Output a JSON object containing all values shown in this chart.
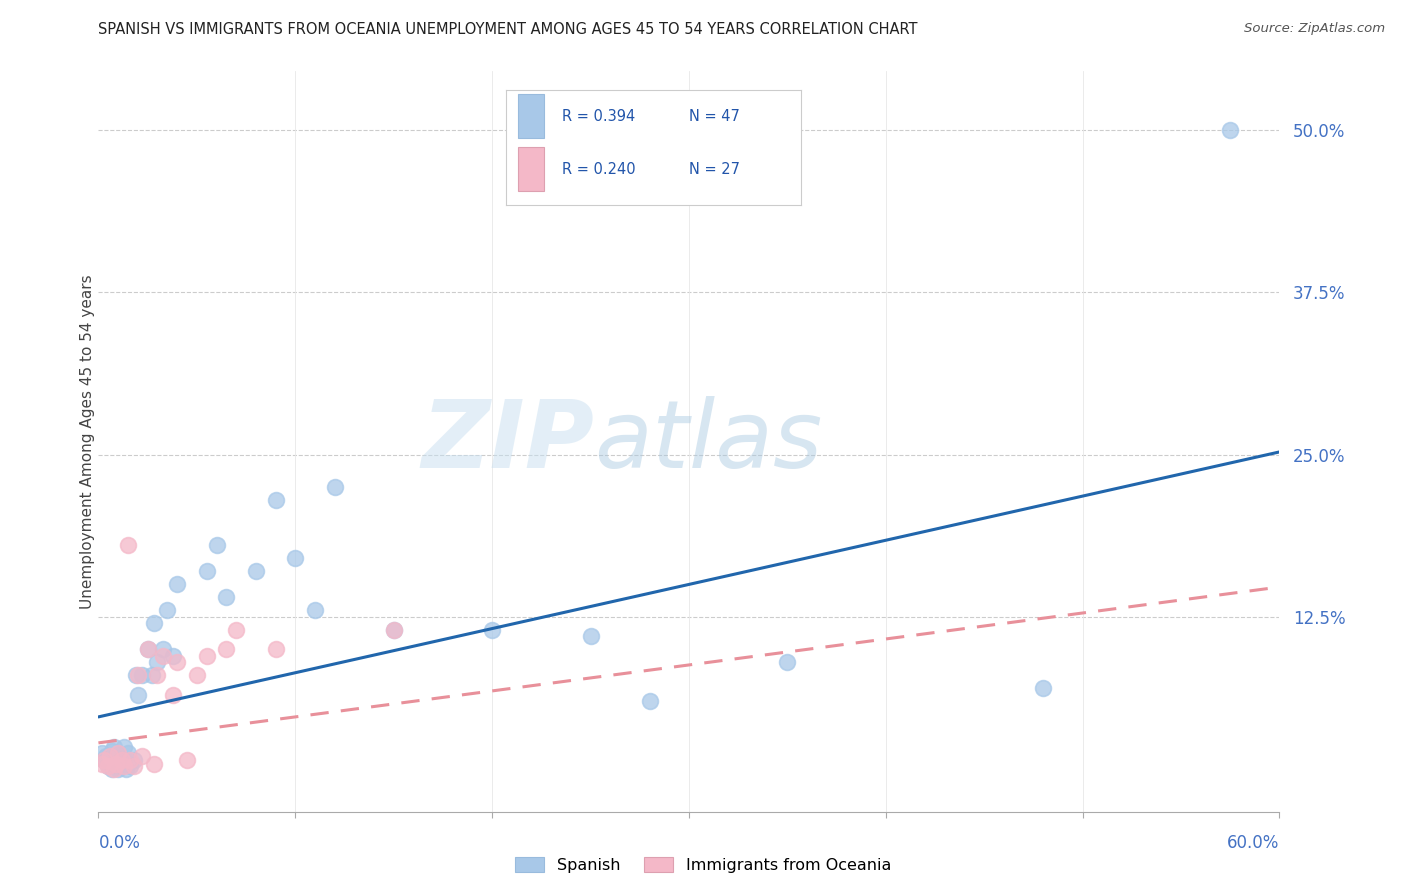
{
  "title": "SPANISH VS IMMIGRANTS FROM OCEANIA UNEMPLOYMENT AMONG AGES 45 TO 54 YEARS CORRELATION CHART",
  "source": "Source: ZipAtlas.com",
  "ylabel": "Unemployment Among Ages 45 to 54 years",
  "xmin": 0.0,
  "xmax": 0.6,
  "ymin": -0.025,
  "ymax": 0.545,
  "watermark_zip": "ZIP",
  "watermark_atlas": "atlas",
  "series1_label": "Spanish",
  "series2_label": "Immigrants from Oceania",
  "R1": 0.394,
  "N1": 47,
  "R2": 0.24,
  "N2": 27,
  "color1": "#a8c8e8",
  "color2": "#f4b8c8",
  "trend1_color": "#2166ac",
  "trend2_color": "#e8909a",
  "trend1_start_y": 0.048,
  "trend1_end_y": 0.252,
  "trend2_start_y": 0.028,
  "trend2_end_y": 0.148,
  "spanish_x": [
    0.002,
    0.003,
    0.004,
    0.005,
    0.006,
    0.007,
    0.007,
    0.008,
    0.008,
    0.009,
    0.01,
    0.01,
    0.011,
    0.012,
    0.013,
    0.013,
    0.014,
    0.015,
    0.015,
    0.016,
    0.018,
    0.019,
    0.02,
    0.022,
    0.025,
    0.027,
    0.028,
    0.03,
    0.033,
    0.035,
    0.038,
    0.04,
    0.055,
    0.06,
    0.065,
    0.08,
    0.09,
    0.1,
    0.11,
    0.12,
    0.15,
    0.2,
    0.25,
    0.28,
    0.35,
    0.48,
    0.575
  ],
  "spanish_y": [
    0.02,
    0.015,
    0.018,
    0.01,
    0.012,
    0.008,
    0.022,
    0.015,
    0.025,
    0.01,
    0.008,
    0.018,
    0.012,
    0.01,
    0.015,
    0.025,
    0.008,
    0.012,
    0.02,
    0.01,
    0.015,
    0.08,
    0.065,
    0.08,
    0.1,
    0.08,
    0.12,
    0.09,
    0.1,
    0.13,
    0.095,
    0.15,
    0.16,
    0.18,
    0.14,
    0.16,
    0.215,
    0.17,
    0.13,
    0.225,
    0.115,
    0.115,
    0.11,
    0.06,
    0.09,
    0.07,
    0.5
  ],
  "oceania_x": [
    0.002,
    0.003,
    0.005,
    0.006,
    0.008,
    0.009,
    0.01,
    0.012,
    0.013,
    0.015,
    0.016,
    0.018,
    0.02,
    0.022,
    0.025,
    0.028,
    0.03,
    0.033,
    0.038,
    0.04,
    0.045,
    0.05,
    0.055,
    0.065,
    0.07,
    0.09,
    0.15
  ],
  "oceania_y": [
    0.012,
    0.015,
    0.01,
    0.018,
    0.008,
    0.012,
    0.02,
    0.015,
    0.01,
    0.18,
    0.015,
    0.01,
    0.08,
    0.018,
    0.1,
    0.012,
    0.08,
    0.095,
    0.065,
    0.09,
    0.015,
    0.08,
    0.095,
    0.1,
    0.115,
    0.1,
    0.115
  ]
}
